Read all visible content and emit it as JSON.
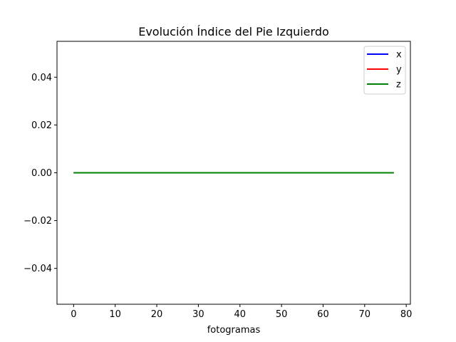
{
  "chart_data": {
    "type": "line",
    "title": "Evolución Índice del Pie Izquierdo",
    "xlabel": "fotogramas",
    "ylabel": "",
    "xlim": [
      -4,
      81
    ],
    "ylim": [
      -0.055,
      0.055
    ],
    "x_ticks": [
      0,
      10,
      20,
      30,
      40,
      50,
      60,
      70,
      80
    ],
    "x_tick_labels": [
      "0",
      "10",
      "20",
      "30",
      "40",
      "50",
      "60",
      "70",
      "80"
    ],
    "y_ticks": [
      -0.04,
      -0.02,
      0.0,
      0.02,
      0.04
    ],
    "y_tick_labels": [
      "−0.04",
      "−0.02",
      "0.00",
      "0.02",
      "0.04"
    ],
    "grid": false,
    "legend_position": "top-right",
    "x": [
      0,
      77
    ],
    "series": [
      {
        "name": "x",
        "color": "#0000ff",
        "values": [
          0,
          0
        ]
      },
      {
        "name": "y",
        "color": "#ff0000",
        "values": [
          0,
          0
        ]
      },
      {
        "name": "z",
        "color": "#008000",
        "values": [
          0,
          0
        ]
      }
    ]
  }
}
